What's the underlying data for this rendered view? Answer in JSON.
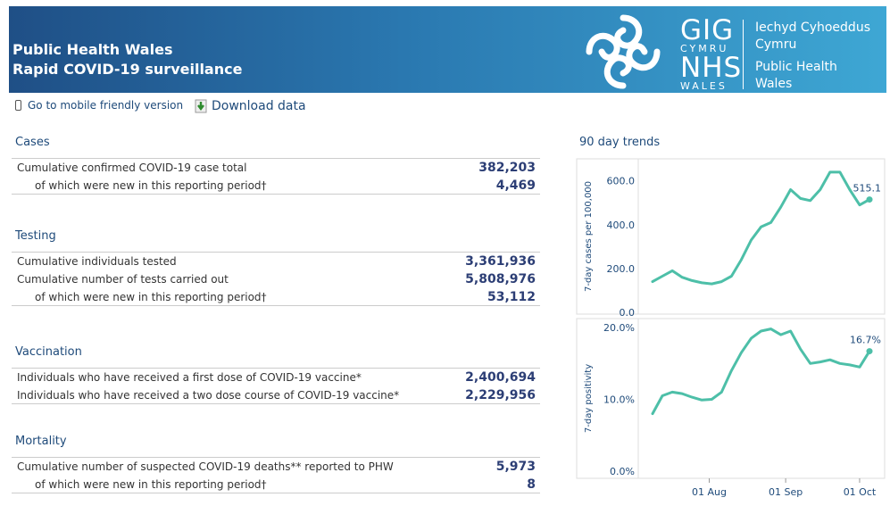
{
  "header": {
    "title_line1": "Public Health Wales",
    "title_line2": "Rapid COVID-19 surveillance",
    "logo": {
      "gig": "GIG",
      "cymru": "CYMRU",
      "nhs": "NHS",
      "wales": "WALES",
      "org_line1": "Iechyd Cyhoeddus",
      "org_line2": "Cymru",
      "org_line3": "Public Health",
      "org_line4": "Wales"
    }
  },
  "links": {
    "mobile": "Go to mobile friendly version",
    "download": "Download data"
  },
  "sections": {
    "cases": {
      "title": "Cases",
      "rows": [
        {
          "label": "Cumulative confirmed COVID-19 case total",
          "value": "382,203"
        },
        {
          "label": "of which were new in this reporting period†",
          "value": "4,469"
        }
      ]
    },
    "testing": {
      "title": "Testing",
      "rows": [
        {
          "label": "Cumulative individuals tested",
          "value": "3,361,936"
        },
        {
          "label": "Cumulative number of tests carried out",
          "value": "5,808,976"
        },
        {
          "label": "of which were new in this reporting period†",
          "value": "53,112"
        }
      ]
    },
    "vaccination": {
      "title": "Vaccination",
      "rows": [
        {
          "label": "Individuals who have received a first dose of COVID-19 vaccine*",
          "value": "2,400,694"
        },
        {
          "label": "Individuals who have received a two dose course of COVID-19 vaccine*",
          "value": "2,229,956"
        }
      ]
    },
    "mortality": {
      "title": "Mortality",
      "rows": [
        {
          "label": "Cumulative number of suspected COVID-19 deaths** reported to PHW",
          "value": "5,973"
        },
        {
          "label": "of which were new in this reporting period†",
          "value": "8"
        }
      ]
    }
  },
  "trends_title": "90 day trends",
  "colors": {
    "line": "#4dbfa8",
    "header_dark": "#1f4f86",
    "header_light": "#3ea7d4",
    "value_text": "#2c3e75"
  },
  "chart_data": [
    {
      "type": "line",
      "ylabel": "7-day cases per 100,000",
      "ylim": [
        0,
        660
      ],
      "yticks": [
        "0.0",
        "200.0",
        "400.0",
        "600.0"
      ],
      "ytick_values": [
        0,
        200,
        400,
        600
      ],
      "end_label": "515.1",
      "x": [
        "07-09",
        "07-13",
        "07-17",
        "07-21",
        "07-25",
        "07-29",
        "08-02",
        "08-06",
        "08-10",
        "08-14",
        "08-18",
        "08-22",
        "08-26",
        "08-30",
        "09-03",
        "09-07",
        "09-11",
        "09-15",
        "09-19",
        "09-23",
        "09-27",
        "10-01",
        "10-05"
      ],
      "values": [
        140,
        165,
        190,
        160,
        145,
        135,
        130,
        140,
        165,
        240,
        330,
        390,
        410,
        480,
        560,
        520,
        510,
        560,
        640,
        640,
        560,
        490,
        515.1
      ]
    },
    {
      "type": "line",
      "ylabel": "7-day positivity",
      "ylim": [
        0,
        20
      ],
      "yticks": [
        "0.0%",
        "10.0%",
        "20.0%"
      ],
      "ytick_values": [
        0,
        10,
        20
      ],
      "end_label": "16.7%",
      "xticks": [
        "01 Aug",
        "01 Sep",
        "01 Oct"
      ],
      "xtick_dates": [
        "08-01",
        "09-01",
        "10-01"
      ],
      "x": [
        "07-09",
        "07-13",
        "07-17",
        "07-21",
        "07-25",
        "07-29",
        "08-02",
        "08-06",
        "08-10",
        "08-14",
        "08-18",
        "08-22",
        "08-26",
        "08-30",
        "09-03",
        "09-07",
        "09-11",
        "09-15",
        "09-19",
        "09-23",
        "09-27",
        "10-01",
        "10-05"
      ],
      "values": [
        8,
        10.5,
        11,
        10.8,
        10.3,
        9.9,
        10,
        11,
        14,
        16.5,
        18.5,
        19.5,
        19.8,
        19,
        19.5,
        17,
        15,
        15.2,
        15.5,
        15,
        14.8,
        14.5,
        16.7
      ]
    }
  ]
}
